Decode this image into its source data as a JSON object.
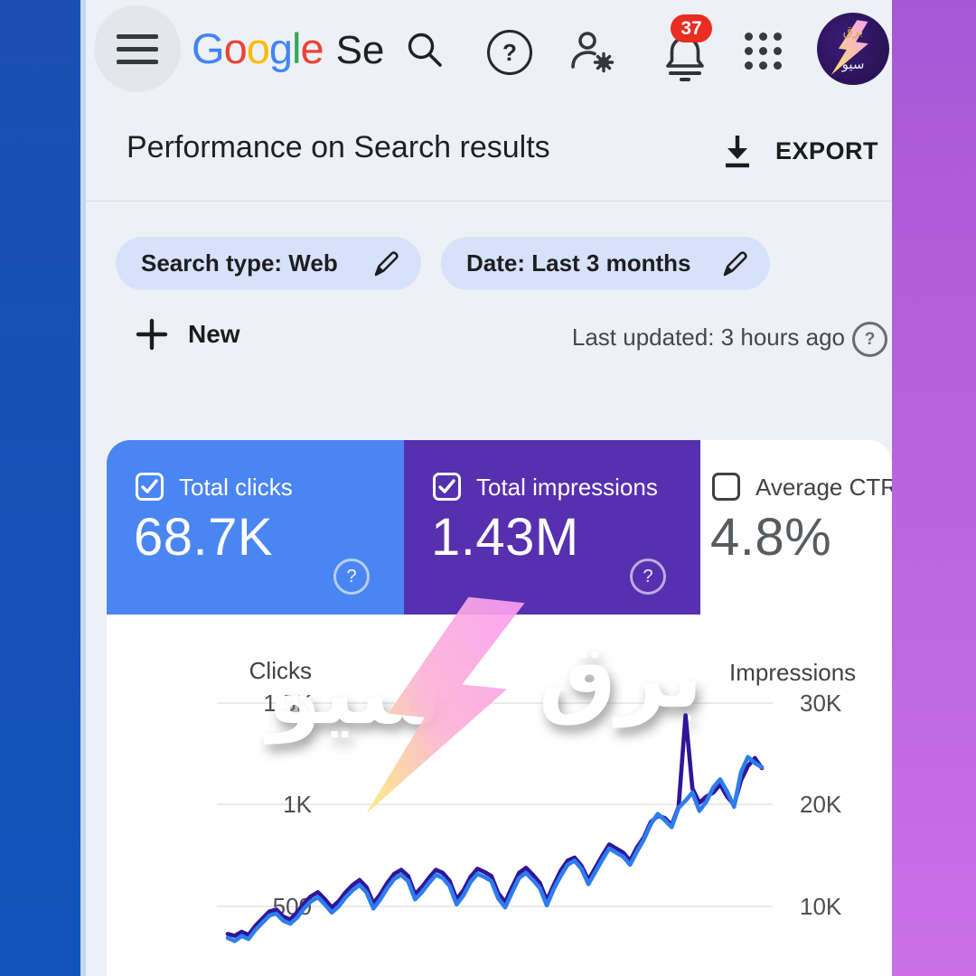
{
  "frame": {
    "left_color": "#1c4fb2",
    "right_color_top": "#a757d6",
    "right_color_bottom": "#cb70e7"
  },
  "topbar": {
    "logo_letters": [
      {
        "char": "G",
        "color": "#4285F4"
      },
      {
        "char": "o",
        "color": "#EA4335"
      },
      {
        "char": "o",
        "color": "#FBBC05"
      },
      {
        "char": "g",
        "color": "#4285F4"
      },
      {
        "char": "l",
        "color": "#34A853"
      },
      {
        "char": "e",
        "color": "#EA4335"
      }
    ],
    "product_name_visible": "Se",
    "notification_count": "37",
    "help_glyph": "?"
  },
  "header": {
    "title": "Performance on Search results",
    "export_label": "EXPORT"
  },
  "filters": {
    "search_type_chip": "Search type: Web",
    "date_chip": "Date: Last 3 months"
  },
  "actions": {
    "new_label": "New",
    "last_updated": "Last updated: 3 hours ago",
    "help_glyph": "?"
  },
  "metrics": {
    "cards": [
      {
        "label": "Total clicks",
        "value": "68.7K",
        "checked": true,
        "bg": "#4a86f1",
        "text_color": "#ffffff",
        "help_glyph": "?"
      },
      {
        "label": "Total impressions",
        "value": "1.43M",
        "checked": true,
        "bg": "#5630af",
        "text_color": "#ffffff",
        "help_glyph": "?"
      },
      {
        "label": "Average CTR",
        "value": "4.8%",
        "checked": false,
        "bg": "#ffffff",
        "text_color": "#3f4246"
      }
    ]
  },
  "watermark": {
    "word_right": "برق",
    "word_left": "سيو",
    "bolt_color_top": "#fb9df3",
    "bolt_color_bottom": "#f8ec77"
  },
  "avatar": {
    "line1": "برق",
    "line2": "سيو"
  },
  "chart_data": {
    "type": "line",
    "grid": true,
    "x_axis_labels_visible": false,
    "left_axis": {
      "label": "Clicks",
      "tick_labels": [
        "1.5K",
        "1K",
        "500"
      ],
      "tick_values": [
        1500,
        1000,
        500
      ]
    },
    "right_axis": {
      "label": "Impressions",
      "tick_labels": [
        "30K",
        "20K",
        "10K"
      ],
      "tick_values": [
        30000,
        20000,
        10000
      ]
    },
    "series": [
      {
        "name": "Impressions",
        "axis": "right",
        "color": "#2f1699",
        "values": [
          7300,
          7100,
          7500,
          7200,
          8100,
          8800,
          9500,
          9700,
          9000,
          8700,
          9400,
          10300,
          11000,
          11400,
          10700,
          9900,
          10500,
          11400,
          12100,
          12600,
          11900,
          10300,
          11200,
          12300,
          13200,
          13600,
          13000,
          11200,
          11900,
          12800,
          13600,
          13300,
          12500,
          10700,
          11600,
          12900,
          13700,
          13400,
          13000,
          11300,
          10400,
          11900,
          13300,
          13800,
          13100,
          12300,
          10600,
          12100,
          13500,
          14500,
          14800,
          14000,
          12600,
          13800,
          15000,
          16100,
          15700,
          15300,
          14500,
          15800,
          16800,
          18300,
          18900,
          18700,
          18000,
          19800,
          28800,
          21600,
          20200,
          20800,
          21200,
          22000,
          20800,
          20000,
          22400,
          23800,
          24600,
          23600
        ]
      },
      {
        "name": "Clicks",
        "axis": "left",
        "color": "#2e7df0",
        "values": [
          345,
          330,
          355,
          340,
          385,
          420,
          455,
          465,
          430,
          415,
          445,
          490,
          525,
          545,
          510,
          470,
          500,
          545,
          580,
          605,
          570,
          490,
          535,
          590,
          635,
          655,
          625,
          535,
          570,
          615,
          655,
          640,
          600,
          510,
          555,
          620,
          660,
          645,
          625,
          540,
          495,
          570,
          640,
          665,
          630,
          590,
          505,
          585,
          650,
          705,
          725,
          685,
          610,
          670,
          730,
          785,
          765,
          745,
          705,
          770,
          830,
          905,
          955,
          925,
          890,
          985,
          1020,
          1060,
          970,
          1015,
          1085,
          1125,
          1065,
          990,
          1160,
          1235,
          1205,
          1185
        ]
      }
    ]
  }
}
